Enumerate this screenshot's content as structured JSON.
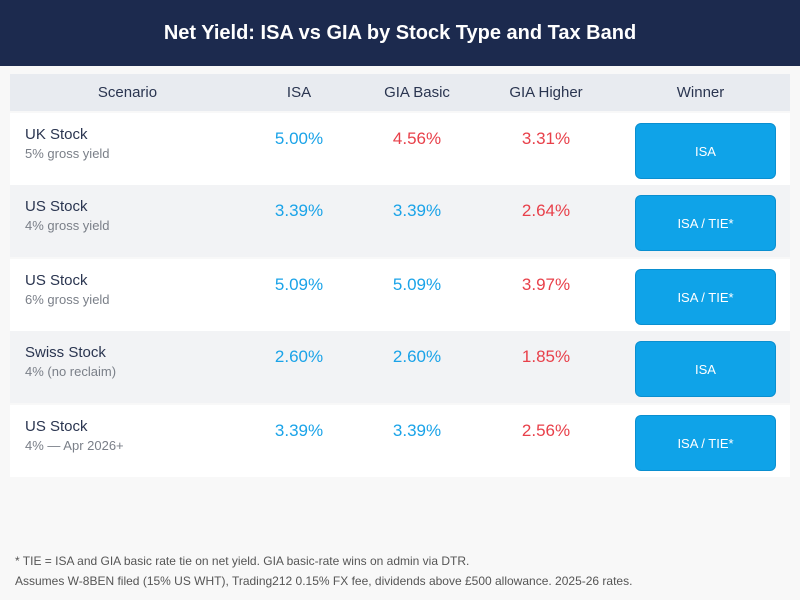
{
  "title": "Net Yield: ISA vs GIA by Stock Type and Tax Band",
  "columns": [
    "Scenario",
    "ISA",
    "GIA Basic",
    "GIA Higher",
    "Winner"
  ],
  "colors": {
    "header_bg": "#1c2a4e",
    "good": "#1aa3e8",
    "bad": "#e8404a",
    "winner_button": "#0fa3e8"
  },
  "rows": [
    {
      "name": "UK Stock",
      "sub": "5% gross yield",
      "isa": "5.00%",
      "gia_basic": "4.56%",
      "gia_higher": "3.31%",
      "winner": "ISA",
      "basic_color": "red"
    },
    {
      "name": "US Stock",
      "sub": "4% gross yield",
      "isa": "3.39%",
      "gia_basic": "3.39%",
      "gia_higher": "2.64%",
      "winner": "ISA / TIE*",
      "basic_color": "blue"
    },
    {
      "name": "US Stock",
      "sub": "6% gross yield",
      "isa": "5.09%",
      "gia_basic": "5.09%",
      "gia_higher": "3.97%",
      "winner": "ISA / TIE*",
      "basic_color": "blue"
    },
    {
      "name": "Swiss Stock",
      "sub": "4% (no reclaim)",
      "isa": "2.60%",
      "gia_basic": "2.60%",
      "gia_higher": "1.85%",
      "winner": "ISA",
      "basic_color": "blue"
    },
    {
      "name": "US Stock",
      "sub": "4% — Apr 2026+",
      "isa": "3.39%",
      "gia_basic": "3.39%",
      "gia_higher": "2.56%",
      "winner": "ISA / TIE*",
      "basic_color": "blue"
    }
  ],
  "footnotes": [
    "* TIE = ISA and GIA basic rate tie on net yield. GIA basic-rate wins on admin via DTR.",
    "Assumes W-8BEN filed (15% US WHT), Trading212 0.15% FX fee, dividends above £500 allowance. 2025-26 rates."
  ]
}
